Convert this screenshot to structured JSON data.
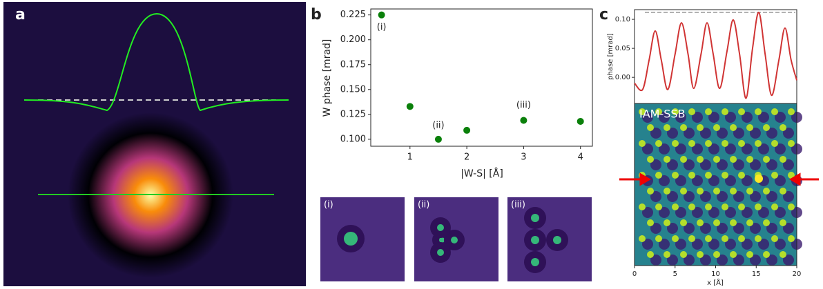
{
  "chart_data": [
    {
      "type": "image",
      "panel_label": "a"
    },
    {
      "type": "scatter",
      "panel_label": "b",
      "xlabel": "|W-S| [Å]",
      "ylabel": "W phase [mrad]",
      "x": [
        0.5,
        1,
        1.5,
        2,
        3,
        4
      ],
      "values": [
        0.225,
        0.133,
        0.1,
        0.109,
        0.119,
        0.118
      ],
      "color": "#0a800a",
      "xlim": [
        0.31,
        4.21
      ],
      "xticks": [
        1,
        2,
        3,
        4
      ],
      "ylim": [
        0.093,
        0.231
      ],
      "yticks": [
        {
          "value": 0.1,
          "label": "0.100"
        },
        {
          "value": 0.125,
          "label": "0.125"
        },
        {
          "value": 0.15,
          "label": "0.150"
        },
        {
          "value": 0.175,
          "label": "0.175"
        },
        {
          "value": 0.2,
          "label": "0.200"
        },
        {
          "value": 0.225,
          "label": "0.225"
        }
      ],
      "annotations": [
        "(i)",
        "(ii)",
        "(iii)"
      ],
      "insets": [
        "(i)",
        "(ii)",
        "(iii)"
      ]
    },
    {
      "type": "line",
      "panel_label": "c",
      "xlabel": "x [Å]",
      "ylabel": "phase [mrad]",
      "image_label": "IAM-SSB",
      "x": [
        0,
        1.0,
        1.8,
        2.55,
        3.3,
        4.1,
        5.0,
        5.79,
        6.6,
        7.3,
        8.2,
        8.94,
        9.7,
        10.5,
        11.4,
        12.17,
        12.95,
        13.75,
        14.55,
        15.32,
        16.1,
        16.9,
        17.8,
        18.55,
        19.3,
        20
      ],
      "values": [
        -0.01,
        -0.021,
        0.03,
        0.08,
        0.03,
        -0.021,
        0.04,
        0.094,
        0.04,
        -0.019,
        0.04,
        0.094,
        0.04,
        -0.019,
        0.045,
        0.099,
        0.04,
        -0.036,
        0.05,
        0.112,
        0.04,
        -0.031,
        0.03,
        0.085,
        0.03,
        -0.005
      ],
      "color": "#d03434",
      "reference_line": 0.112,
      "xlim": [
        0,
        20
      ],
      "xticks": [
        0,
        5,
        10,
        15,
        20
      ],
      "ylim": [
        -0.045,
        0.1167
      ],
      "yticks": [
        {
          "value": 0,
          "label": "0.00"
        },
        {
          "value": 0.05,
          "label": "0.05"
        },
        {
          "value": 0.1,
          "label": "0.10"
        }
      ]
    }
  ]
}
